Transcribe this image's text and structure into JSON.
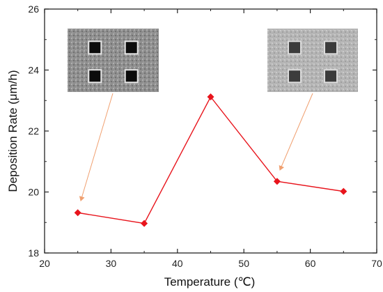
{
  "chart_data": {
    "type": "line",
    "title": "",
    "xlabel": "Temperature (℃)",
    "ylabel": "Deposition Rate (μm/h)",
    "xlim": [
      20,
      70
    ],
    "ylim": [
      18,
      26
    ],
    "xticks": [
      20,
      30,
      40,
      50,
      60,
      70
    ],
    "yticks": [
      18,
      20,
      22,
      24,
      26
    ],
    "grid": false,
    "series": [
      {
        "x": [
          25,
          35,
          45,
          55,
          65
        ],
        "y": [
          19.32,
          18.97,
          23.12,
          20.35,
          20.02
        ],
        "color": "#e8141c",
        "marker": "diamond"
      }
    ],
    "annotations": [
      {
        "type": "inset-image",
        "description": "SEM micrograph with four dark square pores",
        "arrow_to_x": 25
      },
      {
        "type": "inset-image",
        "description": "SEM micrograph with four grey square pores",
        "arrow_to_x": 55
      }
    ],
    "arrow_color": "#f0a070"
  }
}
